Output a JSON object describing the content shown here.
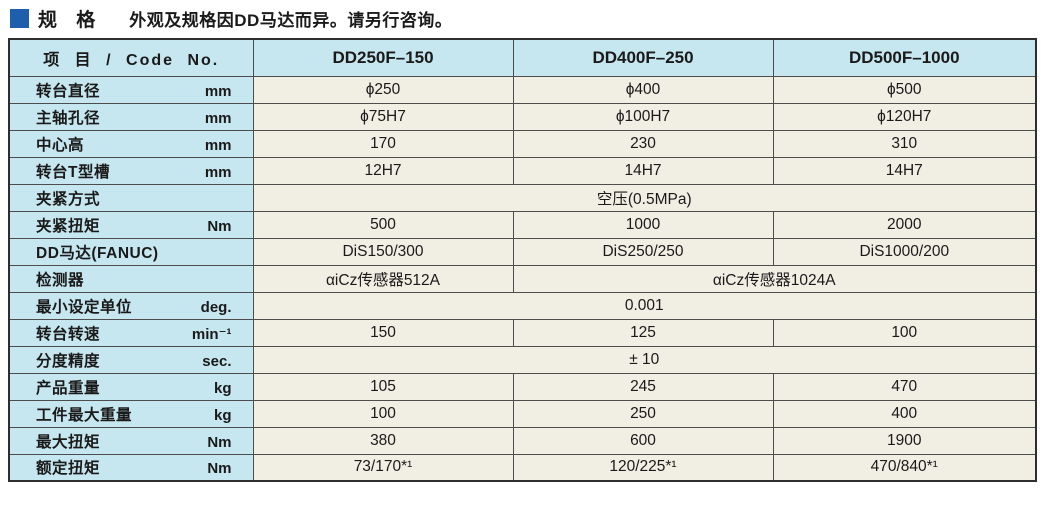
{
  "header": {
    "title": "规 格",
    "subtitle": "外观及规格因DD马达而异。请另行咨询。",
    "bullet_color": "#1d5fad"
  },
  "colors": {
    "header_cell_bg": "#c6e7f0",
    "value_cell_bg": "#f1eee3",
    "border_outer": "#2e2e2e",
    "border_inner": "#4d4d4d",
    "text": "#1a1a1a",
    "page_bg": "#ffffff"
  },
  "table": {
    "header": {
      "item_label": "项 目 / Code No.",
      "models": [
        "DD250F–150",
        "DD400F–250",
        "DD500F–1000"
      ]
    },
    "rows": [
      {
        "label": "转台直径",
        "unit": "mm",
        "cells": [
          {
            "t": "ϕ250"
          },
          {
            "t": "ϕ400"
          },
          {
            "t": "ϕ500"
          }
        ]
      },
      {
        "label": "主轴孔径",
        "unit": "mm",
        "cells": [
          {
            "t": "ϕ75H7"
          },
          {
            "t": "ϕ100H7"
          },
          {
            "t": "ϕ120H7"
          }
        ]
      },
      {
        "label": "中心高",
        "unit": "mm",
        "cells": [
          {
            "t": "170"
          },
          {
            "t": "230"
          },
          {
            "t": "310"
          }
        ]
      },
      {
        "label": "转台T型槽",
        "unit": "mm",
        "cells": [
          {
            "t": "12H7"
          },
          {
            "t": "14H7"
          },
          {
            "t": "14H7"
          }
        ]
      },
      {
        "label": "夹紧方式",
        "unit": "",
        "cells": [
          {
            "t": "空压(0.5MPa)",
            "span": 3
          }
        ]
      },
      {
        "label": "夹紧扭矩",
        "unit": "Nm",
        "cells": [
          {
            "t": "500"
          },
          {
            "t": "1000"
          },
          {
            "t": "2000"
          }
        ]
      },
      {
        "label": "DD马达(FANUC)",
        "unit": "",
        "cells": [
          {
            "t": "DiS150/300"
          },
          {
            "t": "DiS250/250"
          },
          {
            "t": "DiS1000/200"
          }
        ]
      },
      {
        "label": "检测器",
        "unit": "",
        "cells": [
          {
            "t": "αiCz传感器512A"
          },
          {
            "t": "αiCz传感器1024A",
            "span": 2
          }
        ]
      },
      {
        "label": "最小设定单位",
        "unit": "deg.",
        "cells": [
          {
            "t": "0.001",
            "span": 3
          }
        ]
      },
      {
        "label": "转台转速",
        "unit": "min⁻¹",
        "cells": [
          {
            "t": "150"
          },
          {
            "t": "125"
          },
          {
            "t": "100"
          }
        ]
      },
      {
        "label": "分度精度",
        "unit": "sec.",
        "cells": [
          {
            "t": "± 10",
            "span": 3
          }
        ]
      },
      {
        "label": "产品重量",
        "unit": "kg",
        "cells": [
          {
            "t": "105"
          },
          {
            "t": "245"
          },
          {
            "t": "470"
          }
        ]
      },
      {
        "label": "工件最大重量",
        "unit": "kg",
        "cells": [
          {
            "t": "100"
          },
          {
            "t": "250"
          },
          {
            "t": "400"
          }
        ]
      },
      {
        "label": "最大扭矩",
        "unit": "Nm",
        "cells": [
          {
            "t": "380"
          },
          {
            "t": "600"
          },
          {
            "t": "1900"
          }
        ]
      },
      {
        "label": "额定扭矩",
        "unit": "Nm",
        "cells": [
          {
            "t": "73/170*¹"
          },
          {
            "t": "120/225*¹"
          },
          {
            "t": "470/840*¹"
          }
        ]
      }
    ]
  }
}
